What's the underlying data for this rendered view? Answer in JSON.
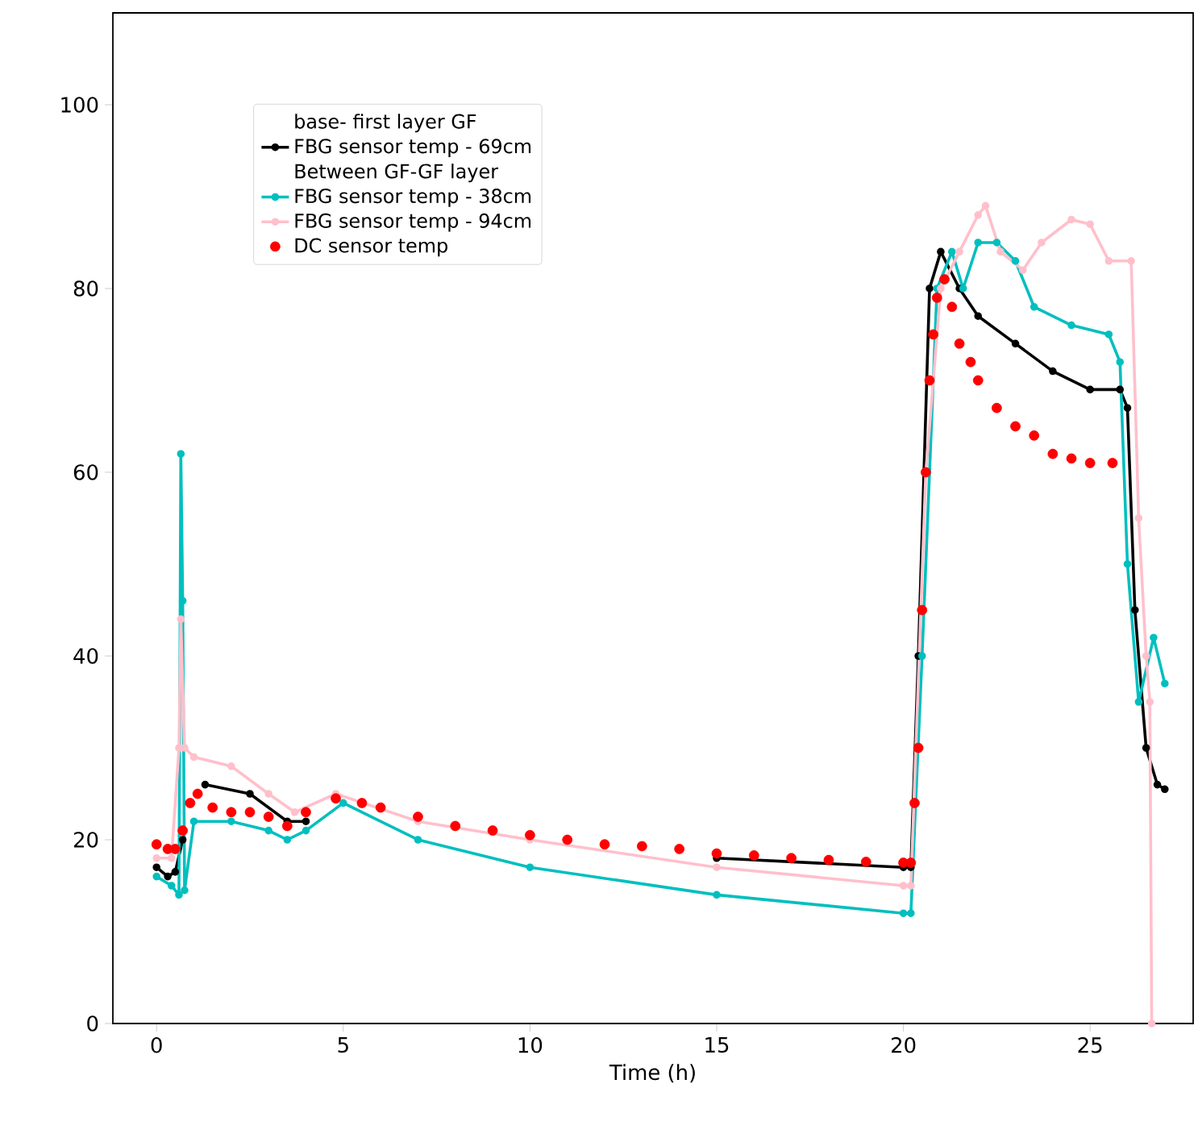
{
  "chart_data": {
    "type": "line",
    "xlabel": "Time (h)",
    "annotations": [
      "base- first layer GF",
      "Between GF-GF layer"
    ],
    "xlim": [
      -1.17,
      27.76
    ],
    "ylim": [
      0,
      110
    ],
    "xticks": [
      0,
      5,
      10,
      15,
      20,
      25
    ],
    "yticks": [
      0,
      20,
      40,
      60,
      80,
      100
    ],
    "grid": false,
    "legend": "top left",
    "marker": "circle",
    "line_style": "solid",
    "series": [
      {
        "name": "FBG sensor temp - 69cm",
        "color": "#000000",
        "x": [
          0,
          0.3,
          0.5,
          0.7,
          1.0,
          1.3,
          2.5,
          3.5,
          4,
          5,
          7,
          10,
          15,
          20,
          20.2,
          20.4,
          20.7,
          21,
          21.5,
          22,
          23,
          24,
          25,
          25.8,
          26,
          26.2,
          26.5,
          26.8,
          27
        ],
        "values": [
          17,
          16,
          16.5,
          20,
          null,
          26,
          25,
          22,
          22,
          null,
          null,
          null,
          18,
          17,
          17,
          40,
          80,
          84,
          80,
          77,
          74,
          71,
          69,
          69,
          67,
          45,
          30,
          26,
          25.5
        ]
      },
      {
        "name": "FBG sensor temp - 38cm",
        "color": "#00bfbf",
        "x": [
          0,
          0.4,
          0.6,
          0.65,
          0.7,
          0.75,
          1.0,
          2,
          3,
          3.5,
          4,
          5,
          7,
          10,
          15,
          20,
          20.2,
          20.5,
          20.9,
          21.3,
          21.6,
          22,
          22.5,
          23,
          23.5,
          24.5,
          25.5,
          25.8,
          26,
          26.3,
          26.7,
          27
        ],
        "values": [
          16,
          15,
          14,
          62,
          46,
          14.5,
          22,
          22,
          21,
          20,
          21,
          24,
          20,
          17,
          14,
          12,
          12,
          40,
          80,
          84,
          80,
          85,
          85,
          83,
          78,
          76,
          75,
          72,
          50,
          35,
          42,
          37
        ]
      },
      {
        "name": "FBG sensor temp - 94cm",
        "color": "#ffc0cb",
        "x": [
          0,
          0.4,
          0.6,
          0.65,
          0.75,
          1,
          2,
          3,
          3.7,
          4.8,
          7,
          10,
          15,
          20,
          20.2,
          20.6,
          21,
          21.5,
          22,
          22.2,
          22.6,
          23.2,
          23.7,
          24.5,
          25,
          25.5,
          26.1,
          26.3,
          26.5,
          26.6,
          26.65
        ],
        "values": [
          18,
          18,
          30,
          44,
          30,
          29,
          28,
          25,
          23,
          25,
          22,
          20,
          17,
          15,
          15,
          60,
          80,
          84,
          88,
          89,
          84,
          82,
          85,
          87.5,
          87,
          83,
          83,
          55,
          40,
          35,
          0
        ]
      },
      {
        "name": "DC sensor temp",
        "type": "scatter",
        "color": "#ff0000",
        "x": [
          0,
          0.3,
          0.5,
          0.7,
          0.9,
          1.1,
          1.5,
          2,
          2.5,
          3,
          3.5,
          4,
          4.8,
          5.5,
          6,
          7,
          8,
          9,
          10,
          11,
          12,
          13,
          14,
          15,
          16,
          17,
          18,
          19,
          20,
          20.2,
          20.3,
          20.4,
          20.5,
          20.6,
          20.7,
          20.8,
          20.9,
          21.1,
          21.3,
          21.5,
          21.8,
          22,
          22.5,
          23,
          23.5,
          24,
          24.5,
          25,
          25.6
        ],
        "values": [
          19.5,
          19,
          19,
          21,
          24,
          25,
          23.5,
          23,
          23,
          22.5,
          21.5,
          23,
          24.5,
          24,
          23.5,
          22.5,
          21.5,
          21,
          20.5,
          20,
          19.5,
          19.3,
          19,
          18.5,
          18.3,
          18,
          17.8,
          17.6,
          17.5,
          17.5,
          24,
          30,
          45,
          60,
          70,
          75,
          79,
          81,
          78,
          74,
          72,
          70,
          67,
          65,
          64,
          62,
          61.5,
          61,
          61
        ]
      }
    ]
  }
}
